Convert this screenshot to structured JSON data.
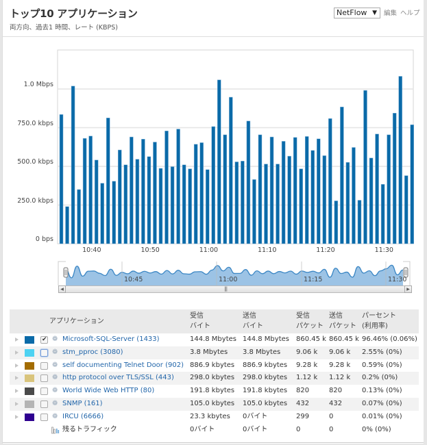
{
  "header": {
    "title": "トップ10 アプリケーション",
    "subtitle": "両方向、過去1 時間、レート (KBPS)",
    "source_select": "NetFlow",
    "source_arrow": "▼",
    "edit_link": "編集",
    "help_link": "ヘルプ"
  },
  "chart_data": {
    "type": "bar",
    "title": "",
    "xlabel": "",
    "ylabel": "",
    "ylim": [
      0,
      1250
    ],
    "unit": "kbps",
    "yticks": [
      {
        "value": 0,
        "label": "0 bps"
      },
      {
        "value": 250,
        "label": "250.0 kbps"
      },
      {
        "value": 500,
        "label": "500.0 kbps"
      },
      {
        "value": 750,
        "label": "750.0 kbps"
      },
      {
        "value": 1000,
        "label": "1.0 Mbps"
      }
    ],
    "xticks": [
      {
        "index": 5.2,
        "label": "10:40"
      },
      {
        "index": 15.2,
        "label": "10:50"
      },
      {
        "index": 25.2,
        "label": "11:00"
      },
      {
        "index": 35.2,
        "label": "11:10"
      },
      {
        "index": 45.2,
        "label": "11:20"
      },
      {
        "index": 55.2,
        "label": "11:30"
      }
    ],
    "grid": true,
    "color": "#0a6aa8",
    "values": [
      835,
      240,
      1019,
      350,
      681,
      696,
      541,
      391,
      813,
      404,
      606,
      510,
      690,
      546,
      676,
      563,
      657,
      487,
      729,
      498,
      741,
      510,
      484,
      643,
      653,
      479,
      757,
      1059,
      704,
      947,
      529,
      534,
      793,
      415,
      704,
      515,
      690,
      515,
      662,
      566,
      687,
      484,
      693,
      603,
      678,
      569,
      809,
      277,
      884,
      526,
      622,
      281,
      991,
      554,
      709,
      384,
      704,
      844,
      1082,
      440,
      769
    ]
  },
  "navigator": {
    "labels": [
      "10:45",
      "11:00",
      "11:15",
      "11:30"
    ],
    "fill_color": "#9cc3e5",
    "line_color": "#3a86c4"
  },
  "table": {
    "columns": {
      "application": "アプリケーション",
      "rx_bytes_1": "受信",
      "rx_bytes_2": "バイト",
      "tx_bytes_1": "送信",
      "tx_bytes_2": "バイト",
      "rx_packets_1": "受信",
      "rx_packets_2": "パケット",
      "tx_packets_1": "送信",
      "tx_packets_2": "パケット",
      "percent_1": "パーセント",
      "percent_2": "(利用率)"
    },
    "rows": [
      {
        "color": "#0a6aa8",
        "checked": true,
        "name": "Microsoft-SQL-Server (1433)",
        "rx_bytes": "144.8 Mbytes",
        "tx_bytes": "144.8 Mbytes",
        "rx_packets": "860.45 k",
        "tx_packets": "860.45 k",
        "percent": "96.46% (0.06%)"
      },
      {
        "color": "#4dd2f2",
        "checked": false,
        "name": "stm_pproc (3080)",
        "rx_bytes": "3.8 Mbytes",
        "tx_bytes": "3.8 Mbytes",
        "rx_packets": "9.06 k",
        "tx_packets": "9.06 k",
        "percent": "2.55% (0%)"
      },
      {
        "color": "#a36c00",
        "checked": false,
        "name": "self documenting Telnet Door (902)",
        "rx_bytes": "886.9 kbytes",
        "tx_bytes": "886.9 kbytes",
        "rx_packets": "9.28 k",
        "tx_packets": "9.28 k",
        "percent": "0.59% (0%)"
      },
      {
        "color": "#d9c47c",
        "checked": false,
        "name": "http protocol over TLS/SSL (443)",
        "rx_bytes": "298.0 kbytes",
        "tx_bytes": "298.0 kbytes",
        "rx_packets": "1.12 k",
        "tx_packets": "1.12 k",
        "percent": "0.2% (0%)"
      },
      {
        "color": "#4a4a4a",
        "checked": false,
        "name": "World Wide Web HTTP (80)",
        "rx_bytes": "191.8 kbytes",
        "tx_bytes": "191.8 kbytes",
        "rx_packets": "820",
        "tx_packets": "820",
        "percent": "0.13% (0%)"
      },
      {
        "color": "#b4b4b4",
        "checked": false,
        "name": "SNMP (161)",
        "rx_bytes": "105.0 kbytes",
        "tx_bytes": "105.0 kbytes",
        "rx_packets": "432",
        "tx_packets": "432",
        "percent": "0.07% (0%)"
      },
      {
        "color": "#2e0090",
        "checked": false,
        "name": "IRCU (6666)",
        "rx_bytes": "23.3 kbytes",
        "tx_bytes": "0バイト",
        "rx_packets": "299",
        "tx_packets": "0",
        "percent": "0.01% (0%)"
      }
    ],
    "remaining": {
      "name": "残るトラフィック",
      "rx_bytes": "0バイト",
      "tx_bytes": "0バイト",
      "rx_packets": "0",
      "tx_packets": "0",
      "percent": "0% (0%)"
    }
  }
}
